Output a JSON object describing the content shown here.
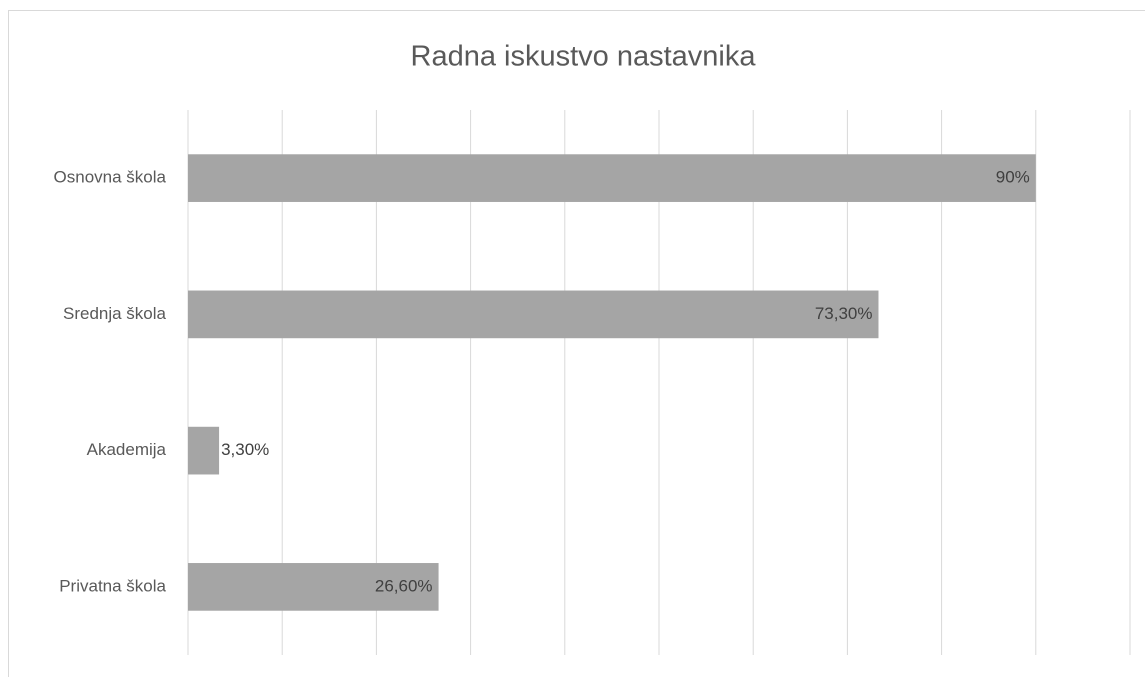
{
  "chart_data": {
    "type": "bar",
    "orientation": "horizontal",
    "title": "Radna iskustvo nastavnika",
    "categories": [
      "Osnovna škola",
      "Srednja škola",
      "Akademija",
      "Privatna škola"
    ],
    "values": [
      90,
      73.3,
      3.3,
      26.6
    ],
    "value_labels": [
      "90%",
      "73,30%",
      "3,30%",
      "26,60%"
    ],
    "color": "#a5a5a5",
    "xlim": [
      0,
      100
    ],
    "xticks": [
      0,
      10,
      20,
      30,
      40,
      50,
      60,
      70,
      80,
      90,
      100
    ],
    "grid": true
  }
}
